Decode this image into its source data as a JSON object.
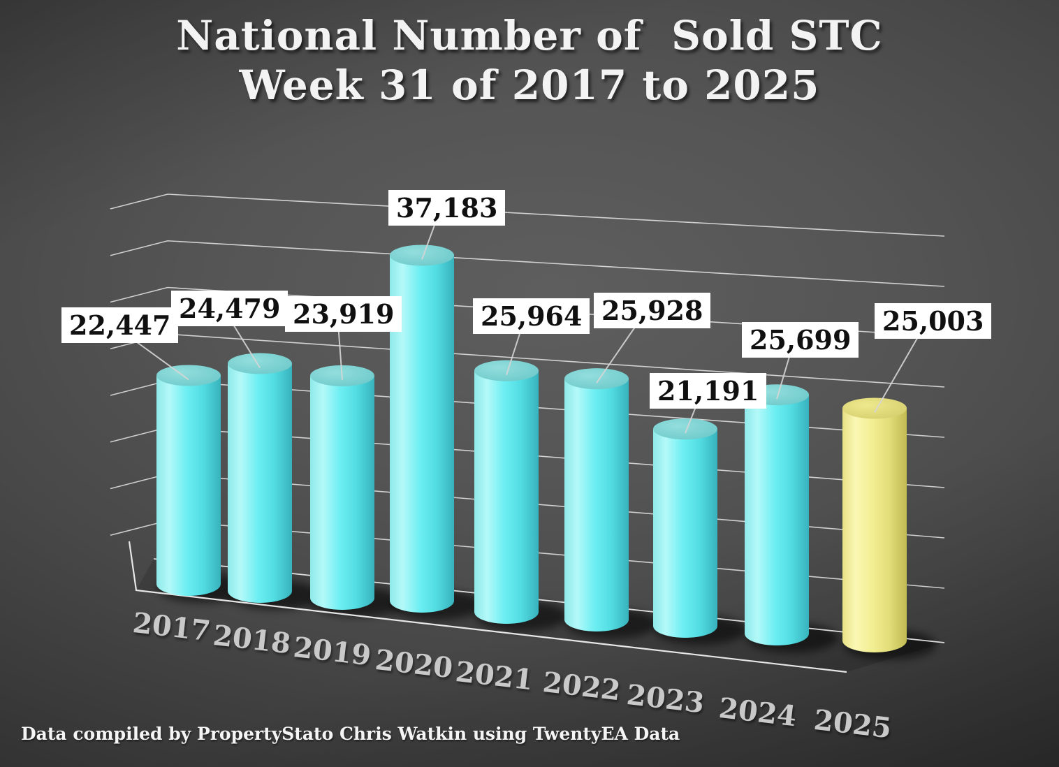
{
  "title": {
    "line1": "National Number of  Sold STC",
    "line2": "Week 31 of 2017 to 2025"
  },
  "footer": "Data compiled by PropertyStato Chris Watkin using TwentyEA Data",
  "chart_data": {
    "type": "bar",
    "subtype": "3d-cylinder",
    "title": "National Number of Sold STC Week 31 of 2017 to 2025",
    "categories": [
      "2017",
      "2018",
      "2019",
      "2020",
      "2021",
      "2022",
      "2023",
      "2024",
      "2025"
    ],
    "values": [
      22447,
      24479,
      23919,
      37183,
      25964,
      25928,
      21191,
      25699,
      25003
    ],
    "value_labels": [
      "22,447",
      "24,479",
      "23,919",
      "37,183",
      "25,964",
      "25,928",
      "21,191",
      "25,699",
      "25,003"
    ],
    "xlabel": "",
    "ylabel": "",
    "ylim": [
      0,
      40000
    ],
    "gridline_step": 5000,
    "grid": true,
    "legend": false,
    "highlighted_category": "2025"
  },
  "colors": {
    "background_center": "#5e5e5e",
    "background_edge": "#262626",
    "gridline": "#e6e6e6",
    "floor_line": "#f0f0f0",
    "leader_line": "#d6d6d6",
    "label_box_bg": "#ffffff",
    "label_box_text": "#101010",
    "axis_label_text": "#c9c9c9",
    "title_text": "#f3f3f3",
    "cylinder_default": {
      "body": [
        "#8fe9e9",
        "#b4f9f9",
        "#6ceef2",
        "#52dde2",
        "#38b2bc"
      ],
      "top": [
        "#93dedd",
        "#6cc8c9"
      ]
    },
    "cylinder_highlight": {
      "body": [
        "#e8e285",
        "#faf7b4",
        "#f2ee92",
        "#e3dd7a",
        "#c2bb53"
      ],
      "top": [
        "#eee98d",
        "#d4cd6c"
      ]
    }
  }
}
